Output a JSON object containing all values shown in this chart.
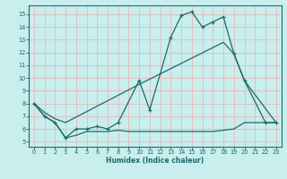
{
  "xlabel": "Humidex (Indice chaleur)",
  "bg_color": "#c8eeed",
  "grid_color": "#e8b8b8",
  "line_color": "#1a6b6b",
  "xlim": [
    -0.5,
    23.5
  ],
  "ylim": [
    4.6,
    15.7
  ],
  "yticks": [
    5,
    6,
    7,
    8,
    9,
    10,
    11,
    12,
    13,
    14,
    15
  ],
  "xticks": [
    0,
    1,
    2,
    3,
    4,
    5,
    6,
    7,
    8,
    9,
    10,
    11,
    12,
    13,
    14,
    15,
    16,
    17,
    18,
    19,
    20,
    21,
    22,
    23
  ],
  "line1_x": [
    0,
    1,
    2,
    3,
    4,
    5,
    6,
    7,
    8,
    10,
    11,
    13,
    14,
    15,
    16,
    17,
    18,
    19,
    20,
    22,
    23
  ],
  "line1_y": [
    8.0,
    7.0,
    6.5,
    5.3,
    6.0,
    6.0,
    6.2,
    6.0,
    6.5,
    9.8,
    7.5,
    13.2,
    14.9,
    15.2,
    14.0,
    14.4,
    14.8,
    11.9,
    9.8,
    6.5,
    6.5
  ],
  "line2_x": [
    0,
    1,
    2,
    3,
    10,
    18,
    19,
    20,
    23
  ],
  "line2_y": [
    8.0,
    7.3,
    6.8,
    6.5,
    9.5,
    12.8,
    11.9,
    9.8,
    6.5
  ],
  "line3_x": [
    0,
    1,
    2,
    3,
    4,
    5,
    6,
    7,
    8,
    9,
    10,
    11,
    12,
    13,
    14,
    15,
    16,
    17,
    18,
    19,
    20,
    21,
    22,
    23
  ],
  "line3_y": [
    8.0,
    7.0,
    6.5,
    5.3,
    5.5,
    5.8,
    5.8,
    5.8,
    5.9,
    5.8,
    5.8,
    5.8,
    5.8,
    5.8,
    5.8,
    5.8,
    5.8,
    5.8,
    5.9,
    6.0,
    6.5,
    6.5,
    6.5,
    6.5
  ]
}
